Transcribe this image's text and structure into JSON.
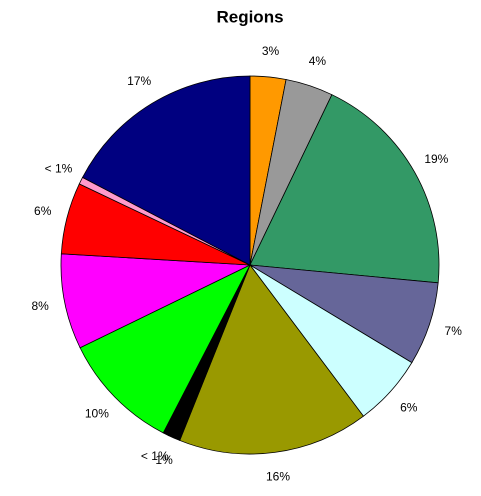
{
  "chart_data": {
    "type": "pie",
    "title": "Regions",
    "values": [
      3,
      4,
      19,
      7,
      6,
      16,
      1,
      0.5,
      10,
      8,
      6,
      0.6,
      17
    ],
    "value_labels": [
      "3%",
      "4%",
      "19%",
      "7%",
      "6%",
      "16%",
      "1%",
      "< 1%",
      "10%",
      "8%",
      "6%",
      "< 1%",
      "17%"
    ],
    "colors": [
      "#ff9900",
      "#999999",
      "#339966",
      "#666699",
      "#ccffff",
      "#999900",
      "#000000",
      "#000000",
      "#00ff00",
      "#ff00ff",
      "#ff0000",
      "#ff99cc",
      "#000080"
    ]
  }
}
